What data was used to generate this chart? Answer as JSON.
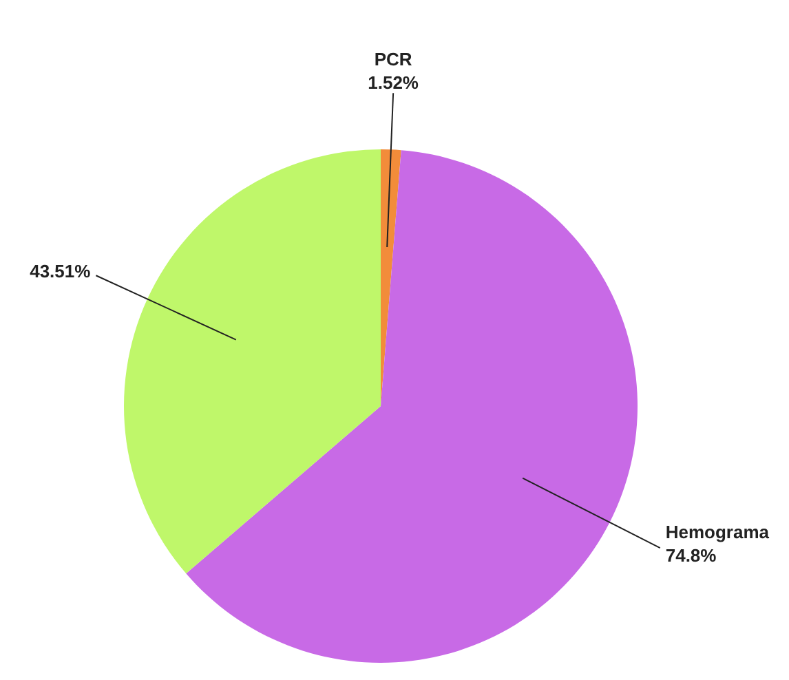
{
  "chart_data": {
    "type": "pie",
    "categories": [
      "PCR",
      "Hemograma",
      null
    ],
    "values": [
      1.52,
      74.8,
      43.51
    ],
    "colors": [
      "#f28c3a",
      "#c86ae6",
      "#bff76a"
    ],
    "value_labels": [
      "1.52%",
      "74.8%",
      "43.51%"
    ],
    "legend": false
  }
}
